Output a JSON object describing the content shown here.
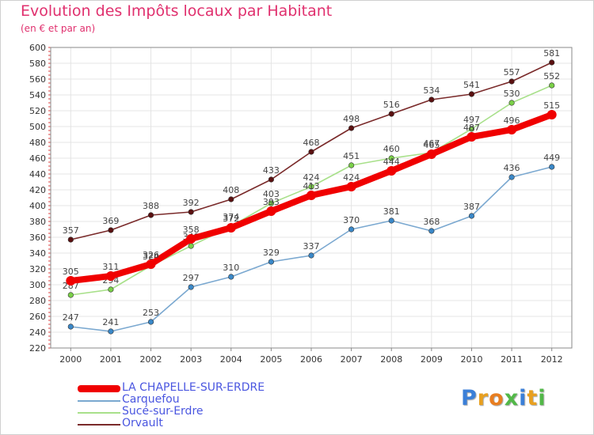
{
  "title": "Evolution des Impôts locaux par Habitant",
  "subtitle": "(en € et par an)",
  "logo": {
    "letters": [
      "P",
      "r",
      "o",
      "x",
      "i",
      "t",
      "i"
    ],
    "colors": [
      "#3a7fd8",
      "#e8a020",
      "#e87e20",
      "#52b848",
      "#3a7fd8",
      "#e8a020",
      "#52b848"
    ]
  },
  "chart_data": {
    "type": "line",
    "title": "Evolution des Impôts locaux par Habitant",
    "subtitle": "(en € et par an)",
    "xlabel": "",
    "ylabel": "",
    "x": [
      "2000",
      "2001",
      "2002",
      "2003",
      "2004",
      "2005",
      "2006",
      "2007",
      "2008",
      "2009",
      "2010",
      "2011",
      "2012"
    ],
    "ylim": [
      220,
      600
    ],
    "yticks": [
      220,
      240,
      260,
      280,
      300,
      320,
      340,
      360,
      380,
      400,
      420,
      440,
      460,
      480,
      500,
      520,
      540,
      560,
      580,
      600
    ],
    "grid": true,
    "legend_position": "bottom-left",
    "series": [
      {
        "name": "Orvault",
        "color": "#7a2a2a",
        "marker": "#5a1010",
        "thick": false,
        "values": [
          357,
          369,
          388,
          392,
          408,
          433,
          468,
          498,
          516,
          534,
          541,
          557,
          581
        ]
      },
      {
        "name": "Sucé-sur-Erdre",
        "color": "#a8e08a",
        "marker": "#7ad048",
        "thick": false,
        "values": [
          287,
          294,
          324,
          349,
          374,
          403,
          424,
          451,
          460,
          467,
          497,
          530,
          552
        ]
      },
      {
        "name": "Carquefou",
        "color": "#7aa8d0",
        "marker": "#3a88c8",
        "thick": false,
        "values": [
          247,
          241,
          253,
          297,
          310,
          329,
          337,
          370,
          381,
          368,
          387,
          436,
          449
        ]
      },
      {
        "name": "LA CHAPELLE-SUR-ERDRE",
        "color": "#f00000",
        "marker": "#f00000",
        "thick": true,
        "values": [
          305,
          311,
          326,
          358,
          372,
          393,
          413,
          424,
          444,
          465,
          487,
          496,
          515
        ]
      }
    ]
  },
  "legend": [
    {
      "label": "LA CHAPELLE-SUR-ERDRE",
      "color": "#f00000",
      "thick": true
    },
    {
      "label": "Carquefou",
      "color": "#7aa8d0",
      "thick": false
    },
    {
      "label": "Sucé-sur-Erdre",
      "color": "#a8e08a",
      "thick": false
    },
    {
      "label": "Orvault",
      "color": "#7a2a2a",
      "thick": false
    }
  ]
}
